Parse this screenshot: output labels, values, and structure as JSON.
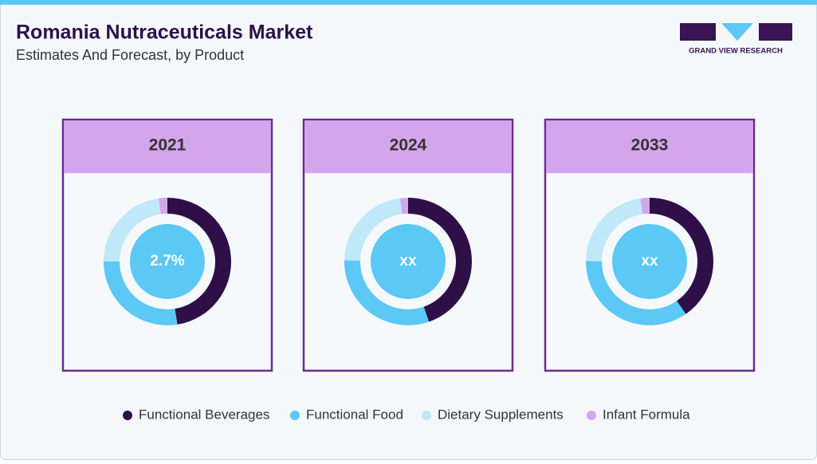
{
  "header": {
    "title": "Romania Nutraceuticals Market",
    "subtitle": "Estimates And Forecast, by Product",
    "logo_text": "GRAND VIEW RESEARCH"
  },
  "chart_data": [
    {
      "type": "donut",
      "title": "2021",
      "center_label": "2.7%",
      "categories": [
        "Functional Beverages",
        "Functional Food",
        "Dietary Supplements",
        "Infant Formula"
      ],
      "colors": [
        "#2e0f47",
        "#5bc8f5",
        "#bfe8f8",
        "#d5a6ec"
      ],
      "values": [
        47.5,
        27.5,
        22.8,
        2.2
      ]
    },
    {
      "type": "donut",
      "title": "2024",
      "center_label": "xx",
      "categories": [
        "Functional Beverages",
        "Functional Food",
        "Dietary Supplements",
        "Infant Formula"
      ],
      "colors": [
        "#2e0f47",
        "#5bc8f5",
        "#bfe8f8",
        "#d5a6ec"
      ],
      "values": [
        44.7,
        30.6,
        22.7,
        2.0
      ]
    },
    {
      "type": "donut",
      "title": "2033",
      "center_label": "xx",
      "categories": [
        "Functional Beverages",
        "Functional Food",
        "Dietary Supplements",
        "Infant Formula"
      ],
      "colors": [
        "#2e0f47",
        "#5bc8f5",
        "#bfe8f8",
        "#d5a6ec"
      ],
      "values": [
        40.4,
        34.7,
        22.6,
        2.3
      ]
    }
  ]
}
